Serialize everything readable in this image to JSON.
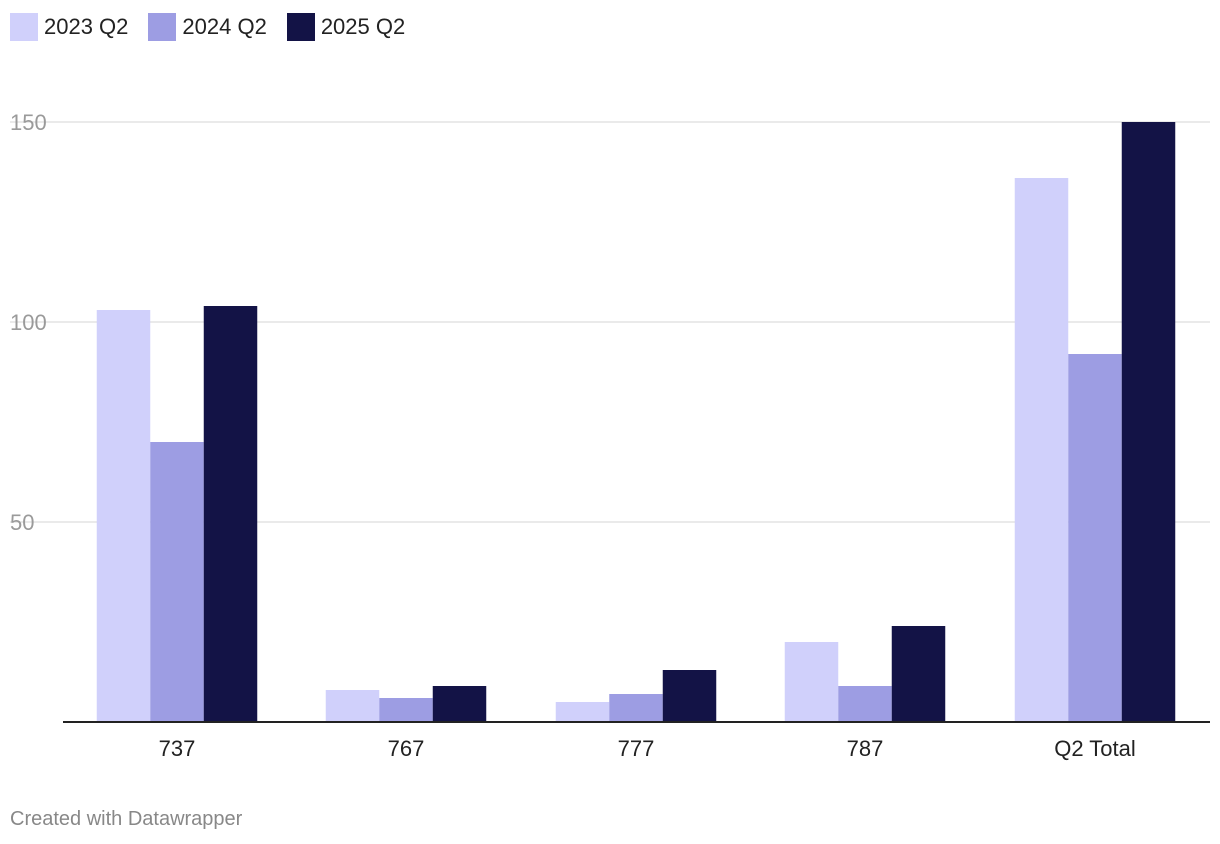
{
  "chart_data": {
    "type": "bar",
    "categories": [
      "737",
      "767",
      "777",
      "787",
      "Q2 Total"
    ],
    "series": [
      {
        "name": "2023 Q2",
        "color": "#d0d0fb",
        "values": [
          103,
          8,
          5,
          20,
          136
        ]
      },
      {
        "name": "2024 Q2",
        "color": "#9d9de3",
        "values": [
          70,
          6,
          7,
          9,
          92
        ]
      },
      {
        "name": "2025 Q2",
        "color": "#131346",
        "values": [
          104,
          9,
          13,
          24,
          150
        ]
      }
    ],
    "ylim": [
      0,
      150
    ],
    "yticks": [
      50,
      100,
      150
    ],
    "grid": true,
    "legend": "top-left"
  },
  "footer": {
    "credit": "Created with Datawrapper"
  }
}
